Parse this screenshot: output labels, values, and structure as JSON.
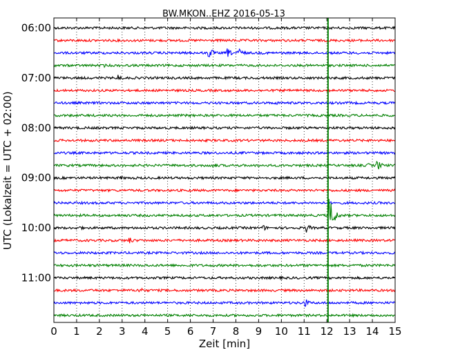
{
  "chart_data": {
    "type": "line",
    "title": "BW.MKON..EHZ 2016-05-13",
    "xlabel": "Zeit  [min]",
    "ylabel": "UTC (Lokalzeit = UTC + 02:00)",
    "xlim": [
      0,
      15
    ],
    "x_ticks": [
      "0",
      "1",
      "2",
      "3",
      "4",
      "5",
      "6",
      "7",
      "8",
      "9",
      "10",
      "11",
      "12",
      "13",
      "14",
      "15"
    ],
    "y_ticks": [
      {
        "label": "06:00",
        "hour_offset": 0
      },
      {
        "label": "07:00",
        "hour_offset": 1
      },
      {
        "label": "08:00",
        "hour_offset": 2
      },
      {
        "label": "09:00",
        "hour_offset": 3
      },
      {
        "label": "10:00",
        "hour_offset": 4
      },
      {
        "label": "11:00",
        "hour_offset": 5
      }
    ],
    "grid": "vertical-dotted",
    "trace_interval_min": 15,
    "trace_colors": [
      "#000000",
      "#ff0000",
      "#0000ff",
      "#008000"
    ],
    "traces": [
      {
        "start": "06:00",
        "color": "#000000",
        "events": []
      },
      {
        "start": "06:15",
        "color": "#ff0000",
        "events": []
      },
      {
        "start": "06:30",
        "color": "#0000ff",
        "events": [
          {
            "t": 6.8,
            "amp": 10
          },
          {
            "t": 7.6,
            "amp": 8
          },
          {
            "t": 8.1,
            "amp": 10
          }
        ]
      },
      {
        "start": "06:45",
        "color": "#008000",
        "events": [
          {
            "t": 2.2,
            "amp": 3
          }
        ]
      },
      {
        "start": "07:00",
        "color": "#000000",
        "events": [
          {
            "t": 2.8,
            "amp": 6
          }
        ]
      },
      {
        "start": "07:15",
        "color": "#ff0000",
        "events": []
      },
      {
        "start": "07:30",
        "color": "#0000ff",
        "events": [
          {
            "t": 9.8,
            "amp": 3
          }
        ]
      },
      {
        "start": "07:45",
        "color": "#008000",
        "events": []
      },
      {
        "start": "08:00",
        "color": "#000000",
        "events": [
          {
            "t": 1.2,
            "amp": 3
          }
        ]
      },
      {
        "start": "08:15",
        "color": "#ff0000",
        "events": []
      },
      {
        "start": "08:30",
        "color": "#0000ff",
        "events": []
      },
      {
        "start": "08:45",
        "color": "#008000",
        "events": [
          {
            "t": 7.0,
            "amp": 5
          },
          {
            "t": 13.8,
            "amp": 4
          },
          {
            "t": 14.2,
            "amp": 9
          }
        ]
      },
      {
        "start": "09:00",
        "color": "#000000",
        "events": [
          {
            "t": 2.9,
            "amp": 4
          }
        ]
      },
      {
        "start": "09:15",
        "color": "#ff0000",
        "events": []
      },
      {
        "start": "09:30",
        "color": "#0000ff",
        "events": []
      },
      {
        "start": "09:45",
        "color": "#008000",
        "events": [
          {
            "t": 12.1,
            "amp": 30
          }
        ]
      },
      {
        "start": "10:00",
        "color": "#000000",
        "events": [
          {
            "t": 1.1,
            "amp": 4
          },
          {
            "t": 9.2,
            "amp": 5
          },
          {
            "t": 11.1,
            "amp": 7
          }
        ]
      },
      {
        "start": "10:15",
        "color": "#ff0000",
        "events": [
          {
            "t": 3.3,
            "amp": 6
          },
          {
            "t": 8.3,
            "amp": 3
          }
        ]
      },
      {
        "start": "10:30",
        "color": "#0000ff",
        "events": []
      },
      {
        "start": "10:45",
        "color": "#008000",
        "events": []
      },
      {
        "start": "11:00",
        "color": "#000000",
        "events": [
          {
            "t": 10.0,
            "amp": 3
          }
        ]
      },
      {
        "start": "11:15",
        "color": "#ff0000",
        "events": [
          {
            "t": 3.7,
            "amp": 7
          }
        ]
      },
      {
        "start": "11:30",
        "color": "#0000ff",
        "events": [
          {
            "t": 1.2,
            "amp": 3
          },
          {
            "t": 11.0,
            "amp": 8
          }
        ]
      },
      {
        "start": "11:45",
        "color": "#008000",
        "events": [
          {
            "t": 5.9,
            "amp": 3
          }
        ]
      }
    ],
    "vertical_marker": {
      "x": 12.05,
      "color": "#008000"
    }
  }
}
